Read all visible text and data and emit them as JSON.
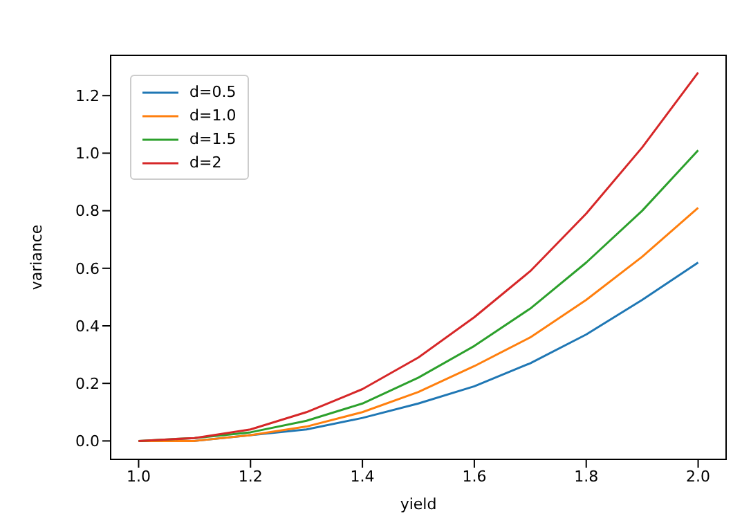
{
  "chart_data": {
    "type": "line",
    "xlabel": "yield",
    "ylabel": "variance",
    "x": [
      1.0,
      1.1,
      1.2,
      1.3,
      1.4,
      1.5,
      1.6,
      1.7,
      1.8,
      1.9,
      2.0
    ],
    "series": [
      {
        "name": "d=0.5",
        "color": "#1f77b4",
        "values": [
          0,
          0,
          0.02,
          0.04,
          0.08,
          0.13,
          0.19,
          0.27,
          0.37,
          0.49,
          0.62
        ]
      },
      {
        "name": "d=1.0",
        "color": "#ff7f0e",
        "values": [
          0,
          0,
          0.02,
          0.05,
          0.1,
          0.17,
          0.26,
          0.36,
          0.49,
          0.64,
          0.81
        ]
      },
      {
        "name": "d=1.5",
        "color": "#2ca02c",
        "values": [
          0,
          0.01,
          0.03,
          0.07,
          0.13,
          0.22,
          0.33,
          0.46,
          0.62,
          0.8,
          1.01
        ]
      },
      {
        "name": "d=2",
        "color": "#d62728",
        "values": [
          0,
          0.01,
          0.04,
          0.1,
          0.18,
          0.29,
          0.43,
          0.59,
          0.79,
          1.02,
          1.28
        ]
      }
    ],
    "xlim": [
      0.95,
      2.05
    ],
    "xticks": [
      {
        "value": 1,
        "label": "1.0"
      },
      1.2,
      1.4,
      1.6,
      1.8,
      {
        "value": 2,
        "label": "2.0"
      }
    ],
    "ylim": [
      -0.064,
      1.34
    ],
    "yticks": [
      {
        "value": 0,
        "label": "0.0"
      },
      0.2,
      0.4,
      0.6,
      0.8,
      {
        "value": 1,
        "label": "1.0"
      },
      1.2
    ],
    "grid": false,
    "legend": "top left",
    "marker": "none",
    "line_style": "solid"
  }
}
